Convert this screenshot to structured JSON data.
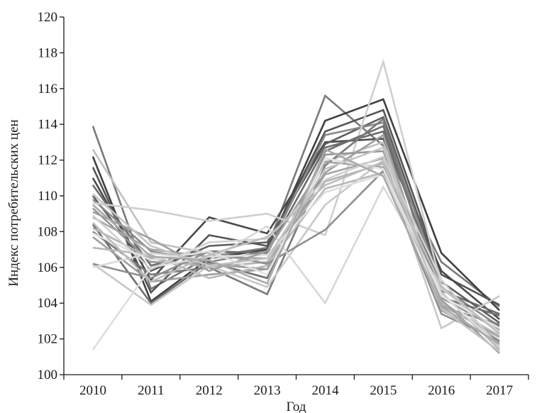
{
  "chart_data": {
    "type": "line",
    "title": "",
    "xlabel": "Год",
    "ylabel": "Индекс потребительских цен",
    "categories": [
      "2010",
      "2011",
      "2012",
      "2013",
      "2014",
      "2015",
      "2016",
      "2017"
    ],
    "yticks": [
      "100",
      "102",
      "104",
      "106",
      "108",
      "110",
      "112",
      "114",
      "116",
      "118",
      "120"
    ],
    "ylim": [
      100,
      120
    ],
    "grid": false,
    "legend": "none",
    "series_palette": [
      "#404040",
      "#555555",
      "#6b6b6b",
      "#7e7e7e",
      "#929292",
      "#a4a4a4",
      "#b6b6b6",
      "#c6c6c6",
      "#d3d3d3",
      "#dedede"
    ],
    "series": [
      {
        "color": "#7a7a7a",
        "values": [
          113.9,
          104.8,
          106.6,
          107.1,
          115.6,
          112.8,
          106.3,
          103.8
        ]
      },
      {
        "color": "#404040",
        "values": [
          112.2,
          104.1,
          106.5,
          107.0,
          114.2,
          115.4,
          106.8,
          103.6
        ]
      },
      {
        "color": "#555555",
        "values": [
          111.6,
          104.6,
          107.8,
          107.2,
          113.6,
          114.8,
          105.6,
          103.9
        ]
      },
      {
        "color": "#4a4a4a",
        "values": [
          111.0,
          105.3,
          108.8,
          107.9,
          113.0,
          113.2,
          105.8,
          103.1
        ]
      },
      {
        "color": "#6b6b6b",
        "values": [
          110.6,
          106.1,
          106.9,
          106.8,
          112.7,
          113.6,
          104.7,
          103.4
        ]
      },
      {
        "color": "#5e5e5e",
        "values": [
          110.0,
          105.8,
          107.2,
          107.4,
          112.9,
          114.4,
          105.2,
          102.9
        ]
      },
      {
        "color": "#8a8a8a",
        "values": [
          109.8,
          106.9,
          106.3,
          106.9,
          113.4,
          114.1,
          104.9,
          102.7
        ]
      },
      {
        "color": "#c0c0c0",
        "values": [
          112.6,
          107.4,
          106.8,
          106.2,
          111.9,
          113.0,
          104.0,
          102.2
        ]
      },
      {
        "color": "#cfcfcf",
        "values": [
          109.6,
          109.2,
          108.6,
          109.0,
          107.8,
          117.5,
          105.0,
          101.6
        ]
      },
      {
        "color": "#6e6e6e",
        "values": [
          108.4,
          104.0,
          106.3,
          105.4,
          112.5,
          113.9,
          104.3,
          103.3
        ]
      },
      {
        "color": "#7a7a7a",
        "values": [
          108.0,
          105.6,
          106.0,
          104.5,
          111.7,
          114.3,
          103.8,
          102.8
        ]
      },
      {
        "color": "#959595",
        "values": [
          109.3,
          106.3,
          106.2,
          105.9,
          112.3,
          112.5,
          104.3,
          102.5
        ]
      },
      {
        "color": "#a6a6a6",
        "values": [
          108.8,
          107.0,
          106.6,
          106.5,
          111.2,
          112.1,
          103.9,
          102.1
        ]
      },
      {
        "color": "#b3b3b3",
        "values": [
          108.2,
          106.5,
          106.0,
          106.3,
          110.8,
          111.8,
          104.1,
          101.9
        ]
      },
      {
        "color": "#9e9e9e",
        "values": [
          107.7,
          105.2,
          105.6,
          105.9,
          111.3,
          113.4,
          103.6,
          101.8
        ]
      },
      {
        "color": "#b8b8b8",
        "values": [
          107.1,
          106.7,
          105.4,
          106.1,
          110.4,
          111.3,
          104.6,
          101.4
        ]
      },
      {
        "color": "#c8c8c8",
        "values": [
          106.2,
          103.9,
          106.1,
          104.9,
          109.5,
          112.0,
          102.6,
          104.4
        ]
      },
      {
        "color": "#8f8f8f",
        "values": [
          106.2,
          105.4,
          106.9,
          106.2,
          108.1,
          111.4,
          103.4,
          101.9
        ]
      },
      {
        "color": "#dedede",
        "values": [
          101.4,
          106.0,
          106.6,
          106.7,
          110.2,
          111.2,
          104.5,
          101.6
        ]
      },
      {
        "color": "#d8d8d8",
        "values": [
          106.0,
          106.8,
          106.4,
          108.3,
          104.0,
          110.5,
          104.8,
          102.4
        ]
      },
      {
        "color": "#a0a0a0",
        "values": [
          109.1,
          107.6,
          105.8,
          106.9,
          111.9,
          111.6,
          104.2,
          101.2
        ]
      },
      {
        "color": "#d0d0d0",
        "values": [
          108.9,
          105.9,
          107.4,
          107.6,
          110.9,
          112.2,
          105.3,
          101.5
        ]
      },
      {
        "color": "#e2e2e2",
        "values": [
          107.9,
          106.4,
          106.9,
          105.6,
          112.1,
          111.5,
          104.4,
          102.6
        ]
      },
      {
        "color": "#c4c4c4",
        "values": [
          110.1,
          107.2,
          106.1,
          106.5,
          111.5,
          112.7,
          103.7,
          101.3
        ]
      },
      {
        "color": "#bdbdbd",
        "values": [
          108.5,
          105.2,
          106.7,
          107.7,
          110.6,
          111.9,
          104.9,
          102.3
        ]
      },
      {
        "color": "#aaaaaa",
        "values": [
          109.5,
          106.6,
          106.4,
          105.1,
          112.6,
          111.1,
          103.8,
          101.7
        ]
      }
    ]
  }
}
